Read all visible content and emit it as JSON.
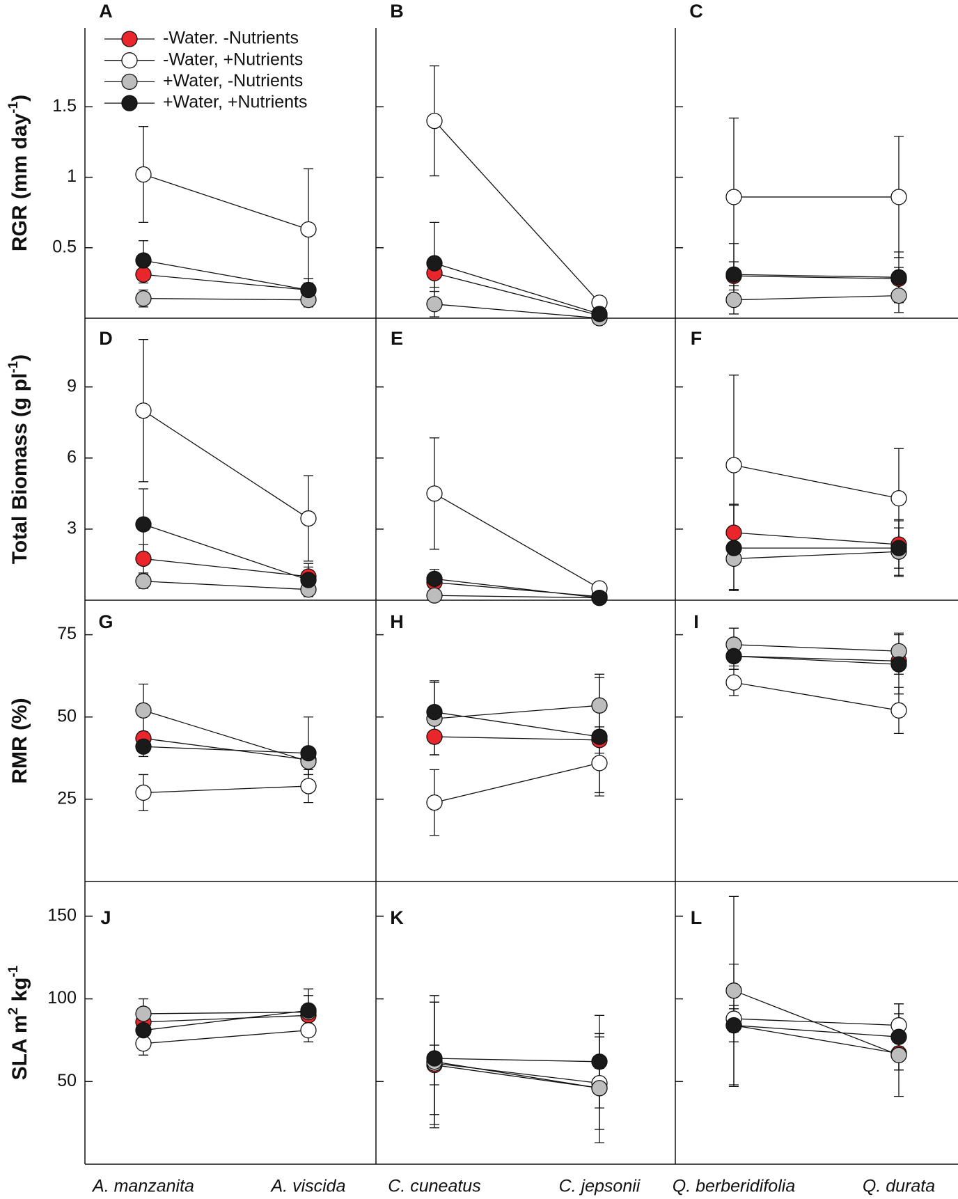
{
  "chart_data": [
    {
      "type": "line",
      "title": "A",
      "ylabel": [
        "RGR (mm day",
        "-1",
        ")"
      ],
      "ylim": [
        0,
        2.06
      ],
      "yticks": [
        0.5,
        1.0,
        1.5
      ],
      "series": [
        {
          "name": "-Water. -Nutrients",
          "color": "#e8262b",
          "values": [
            0.31,
            0.2
          ],
          "errors": [
            0.06,
            0.05
          ]
        },
        {
          "name": "-Water, +Nutrients",
          "color": "#ffffff",
          "values": [
            1.02,
            0.63
          ],
          "errors": [
            0.34,
            0.43
          ]
        },
        {
          "name": "+Water, -Nutrients",
          "color": "#bdbdbd",
          "values": [
            0.14,
            0.13
          ],
          "errors": [
            0.06,
            0.05
          ]
        },
        {
          "name": "+Water, +Nutrients",
          "color": "#1a1a1a",
          "values": [
            0.41,
            0.2
          ],
          "errors": [
            0.14,
            0.08
          ]
        }
      ]
    },
    {
      "type": "line",
      "title": "B",
      "ylim": [
        0,
        2.06
      ],
      "yticks": [
        0.5,
        1.0,
        1.5
      ],
      "series": [
        {
          "values": [
            0.32,
            0.02
          ],
          "errors": [
            0.1,
            0.01
          ]
        },
        {
          "values": [
            1.4,
            0.11
          ],
          "errors": [
            0.39,
            0.01
          ]
        },
        {
          "values": [
            0.1,
            0.0
          ],
          "errors": [
            0.09,
            0.01
          ]
        },
        {
          "values": [
            0.39,
            0.03
          ],
          "errors": [
            0.29,
            0.01
          ]
        }
      ]
    },
    {
      "type": "line",
      "title": "C",
      "ylim": [
        0,
        2.06
      ],
      "yticks": [
        0.5,
        1.0,
        1.5
      ],
      "series": [
        {
          "values": [
            0.3,
            0.28
          ],
          "errors": [
            0.1,
            0.08
          ]
        },
        {
          "values": [
            0.86,
            0.86
          ],
          "errors": [
            0.56,
            0.43
          ]
        },
        {
          "values": [
            0.13,
            0.16
          ],
          "errors": [
            0.1,
            0.12
          ]
        },
        {
          "values": [
            0.31,
            0.29
          ],
          "errors": [
            0.22,
            0.18
          ]
        }
      ]
    },
    {
      "type": "line",
      "title": "D",
      "ylabel": [
        "Total Biomass (g pl",
        "-1",
        ")"
      ],
      "ylim": [
        0,
        11.9
      ],
      "yticks": [
        3,
        6,
        9
      ],
      "series": [
        {
          "values": [
            1.75,
            1.0
          ],
          "errors": [
            0.6,
            0.4
          ]
        },
        {
          "values": [
            8.0,
            3.45
          ],
          "errors": [
            3.0,
            1.8
          ]
        },
        {
          "values": [
            0.8,
            0.45
          ],
          "errors": [
            0.3,
            0.3
          ]
        },
        {
          "values": [
            3.2,
            0.85
          ],
          "errors": [
            1.5,
            0.7
          ]
        }
      ]
    },
    {
      "type": "line",
      "title": "E",
      "ylim": [
        0,
        11.9
      ],
      "yticks": [
        3,
        6,
        9
      ],
      "series": [
        {
          "values": [
            0.75,
            0.15
          ],
          "errors": [
            0.3,
            0.05
          ]
        },
        {
          "values": [
            4.5,
            0.5
          ],
          "errors": [
            2.35,
            0.1
          ]
        },
        {
          "values": [
            0.2,
            0.1
          ],
          "errors": [
            0.1,
            0.05
          ]
        },
        {
          "values": [
            0.9,
            0.1
          ],
          "errors": [
            0.4,
            0.05
          ]
        }
      ]
    },
    {
      "type": "line",
      "title": "F",
      "ylim": [
        0,
        11.9
      ],
      "yticks": [
        3,
        6,
        9
      ],
      "series": [
        {
          "values": [
            2.85,
            2.35
          ],
          "errors": [
            1.2,
            1.0
          ]
        },
        {
          "values": [
            5.7,
            4.3
          ],
          "errors": [
            3.8,
            2.1
          ]
        },
        {
          "values": [
            1.75,
            2.05
          ],
          "errors": [
            1.3,
            1.0
          ]
        },
        {
          "values": [
            2.2,
            2.2
          ],
          "errors": [
            1.8,
            1.2
          ]
        }
      ]
    },
    {
      "type": "line",
      "title": "G",
      "ylabel": "RMR (%)",
      "ylim": [
        0,
        85.5
      ],
      "yticks": [
        25,
        50,
        75
      ],
      "series": [
        {
          "values": [
            43.5,
            37
          ],
          "errors": [
            2,
            3
          ]
        },
        {
          "values": [
            27,
            29
          ],
          "errors": [
            5.5,
            5
          ]
        },
        {
          "values": [
            52,
            36.5
          ],
          "errors": [
            8,
            4
          ]
        },
        {
          "values": [
            41,
            39
          ],
          "errors": [
            3,
            11
          ]
        }
      ]
    },
    {
      "type": "line",
      "title": "H",
      "ylim": [
        0,
        85.5
      ],
      "yticks": [
        25,
        50,
        75
      ],
      "series": [
        {
          "values": [
            44,
            43
          ],
          "errors": [
            5.5,
            4
          ]
        },
        {
          "values": [
            24,
            36
          ],
          "errors": [
            10,
            9
          ]
        },
        {
          "values": [
            49.5,
            53.5
          ],
          "errors": [
            11,
            9.5
          ]
        },
        {
          "values": [
            51.5,
            44
          ],
          "errors": [
            9.5,
            18
          ]
        }
      ]
    },
    {
      "type": "line",
      "title": "I",
      "ylim": [
        0,
        85.5
      ],
      "yticks": [
        25,
        50,
        75
      ],
      "series": [
        {
          "values": [
            68.5,
            67
          ],
          "errors": [
            4,
            4
          ]
        },
        {
          "values": [
            60.5,
            52
          ],
          "errors": [
            4,
            7
          ]
        },
        {
          "values": [
            72,
            70
          ],
          "errors": [
            5,
            5.5
          ]
        },
        {
          "values": [
            68.5,
            66
          ],
          "errors": [
            3,
            9
          ]
        }
      ]
    },
    {
      "type": "line",
      "title": "J",
      "ylabel": [
        "SLA m",
        "2",
        " kg",
        "-1"
      ],
      "ylim": [
        0,
        171
      ],
      "yticks": [
        50,
        100,
        150
      ],
      "categories": [
        "A. manzanita",
        "A. viscida"
      ],
      "series": [
        {
          "values": [
            86,
            90
          ],
          "errors": [
            4,
            5
          ]
        },
        {
          "values": [
            73,
            81
          ],
          "errors": [
            7,
            7
          ]
        },
        {
          "values": [
            91,
            92
          ],
          "errors": [
            9,
            10
          ]
        },
        {
          "values": [
            81,
            93
          ],
          "errors": [
            8,
            13
          ]
        }
      ]
    },
    {
      "type": "line",
      "title": "K",
      "ylim": [
        0,
        171
      ],
      "yticks": [
        50,
        100,
        150
      ],
      "categories": [
        "C. cuneatus",
        "C. jepsonii"
      ],
      "series": [
        {
          "values": [
            60,
            46
          ],
          "errors": [
            12,
            12
          ]
        },
        {
          "values": [
            61,
            49
          ],
          "errors": [
            37,
            28
          ]
        },
        {
          "values": [
            62,
            46
          ],
          "errors": [
            40,
            33
          ]
        },
        {
          "values": [
            64,
            62
          ],
          "errors": [
            34,
            28
          ]
        }
      ]
    },
    {
      "type": "line",
      "title": "L",
      "ylim": [
        0,
        171
      ],
      "yticks": [
        50,
        100,
        150
      ],
      "categories": [
        "Q. berberidifolia",
        "Q. durata"
      ],
      "series": [
        {
          "values": [
            84,
            67
          ],
          "errors": [
            10,
            10
          ]
        },
        {
          "values": [
            88,
            84
          ],
          "errors": [
            8,
            13
          ]
        },
        {
          "values": [
            105,
            66
          ],
          "errors": [
            57,
            25
          ]
        },
        {
          "values": [
            84,
            77
          ],
          "errors": [
            37,
            20
          ]
        }
      ]
    }
  ]
}
